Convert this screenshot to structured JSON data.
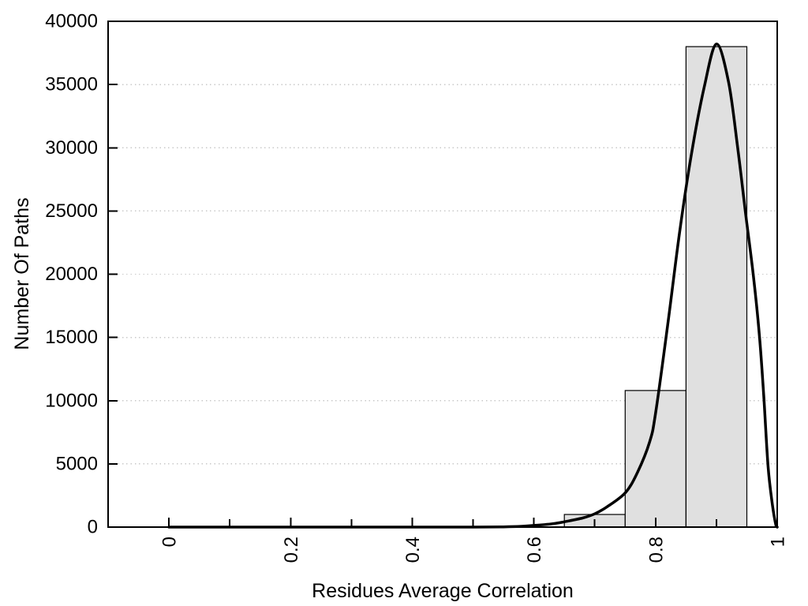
{
  "figure": {
    "background_color": "#ffffff",
    "text_color": "#000000",
    "axis_color": "#000000"
  },
  "chart_data": {
    "type": "bar",
    "subtype": "histogram-with-density-curve",
    "title": "",
    "xlabel": "Residues Average Correlation",
    "ylabel": "Number Of Paths",
    "xlim": [
      -0.1,
      1.0
    ],
    "ylim": [
      0,
      40000
    ],
    "grid": {
      "horizontal_dotted_lines": true,
      "color": "#c9c9c9"
    },
    "x_ticks": {
      "major_values": [
        0,
        0.2,
        0.4,
        0.6,
        0.8,
        1
      ],
      "labels": [
        "0",
        "0.2",
        "0.4",
        "0.6",
        "0.8",
        "1"
      ],
      "minor_values": [
        0.1,
        0.3,
        0.5,
        0.7,
        0.9
      ],
      "label_rotation_deg": -90
    },
    "y_ticks": {
      "values": [
        0,
        5000,
        10000,
        15000,
        20000,
        25000,
        30000,
        35000,
        40000
      ],
      "labels": [
        "0",
        "5000",
        "10000",
        "15000",
        "20000",
        "25000",
        "30000",
        "35000",
        "40000"
      ]
    },
    "bars": {
      "bin_width": 0.1,
      "bin_centers": [
        0.7,
        0.8,
        0.9
      ],
      "values": [
        1000,
        10800,
        38000
      ],
      "fill_color": "#e0e0e0",
      "edge_color": "#000000"
    },
    "curve": {
      "name": "density-fit-curve",
      "color": "#000000",
      "peak": {
        "x": 0.9,
        "y": 38200
      },
      "points": [
        [
          0.0,
          0
        ],
        [
          0.1,
          0
        ],
        [
          0.2,
          0
        ],
        [
          0.3,
          0
        ],
        [
          0.4,
          0
        ],
        [
          0.5,
          0
        ],
        [
          0.55,
          20
        ],
        [
          0.58,
          60
        ],
        [
          0.6,
          130
        ],
        [
          0.63,
          260
        ],
        [
          0.65,
          420
        ],
        [
          0.68,
          720
        ],
        [
          0.7,
          1050
        ],
        [
          0.72,
          1600
        ],
        [
          0.75,
          2700
        ],
        [
          0.77,
          4300
        ],
        [
          0.79,
          6700
        ],
        [
          0.8,
          9000
        ],
        [
          0.82,
          16000
        ],
        [
          0.84,
          23500
        ],
        [
          0.86,
          29800
        ],
        [
          0.88,
          34800
        ],
        [
          0.9,
          38200
        ],
        [
          0.92,
          35200
        ],
        [
          0.935,
          30000
        ],
        [
          0.948,
          24800
        ],
        [
          0.961,
          19800
        ],
        [
          0.971,
          15000
        ],
        [
          0.978,
          10300
        ],
        [
          0.985,
          4800
        ],
        [
          0.992,
          1800
        ],
        [
          0.998,
          100
        ],
        [
          1.0,
          0
        ]
      ]
    },
    "legend": null
  }
}
